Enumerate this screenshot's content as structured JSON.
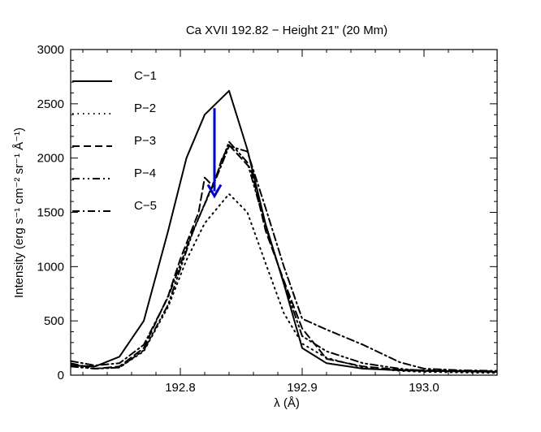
{
  "chart_data": {
    "type": "line",
    "title": "Ca XVII 192.82 − Height 21\" (20 Mm)",
    "xlabel": "λ (Å)",
    "ylabel": "Intensity (erg s⁻¹ cm⁻² sr⁻¹ Å⁻¹)",
    "xlim": [
      192.71,
      193.06
    ],
    "ylim": [
      0,
      3000
    ],
    "x_ticks": [
      192.8,
      192.9,
      193.0
    ],
    "x_tick_labels": [
      "192.8",
      "192.9",
      "193.0"
    ],
    "y_ticks": [
      0,
      500,
      1000,
      1500,
      2000,
      2500,
      3000
    ],
    "y_tick_labels": [
      "0",
      "500",
      "1000",
      "1500",
      "2000",
      "2500",
      "3000"
    ],
    "legend_position": "top-left",
    "series": [
      {
        "name": "C−1",
        "dash": "solid",
        "x": [
          192.71,
          192.73,
          192.75,
          192.77,
          192.79,
          192.805,
          192.82,
          192.84,
          192.855,
          192.87,
          192.885,
          192.9,
          192.92,
          192.95,
          192.98,
          193.0,
          193.03,
          193.06
        ],
        "y": [
          90,
          80,
          170,
          500,
          1330,
          2000,
          2400,
          2620,
          2080,
          1390,
          840,
          250,
          110,
          60,
          45,
          40,
          35,
          30
        ]
      },
      {
        "name": "P−2",
        "dash": "dotted",
        "x": [
          192.71,
          192.73,
          192.75,
          192.77,
          192.79,
          192.805,
          192.82,
          192.84,
          192.855,
          192.87,
          192.885,
          192.9,
          192.92,
          192.95,
          192.98,
          193.0,
          193.03,
          193.06
        ],
        "y": [
          80,
          60,
          70,
          220,
          630,
          1060,
          1400,
          1670,
          1500,
          1030,
          570,
          290,
          160,
          70,
          40,
          30,
          25,
          20
        ]
      },
      {
        "name": "P−3",
        "dash": "dashed",
        "x": [
          192.71,
          192.73,
          192.75,
          192.77,
          192.79,
          192.8,
          192.815,
          192.82,
          192.827,
          192.834,
          192.84,
          192.858,
          192.87,
          192.885,
          192.9,
          192.92,
          192.95,
          192.98,
          193.0,
          193.03,
          193.06
        ],
        "y": [
          110,
          60,
          80,
          250,
          730,
          1070,
          1500,
          1820,
          1740,
          1990,
          2120,
          1900,
          1330,
          870,
          430,
          150,
          80,
          50,
          45,
          40,
          35
        ]
      },
      {
        "name": "P−4",
        "dash": "dashdotdot",
        "x": [
          192.71,
          192.73,
          192.75,
          192.77,
          192.79,
          192.81,
          192.83,
          192.84,
          192.855,
          192.87,
          192.885,
          192.9,
          192.92,
          192.95,
          192.98,
          193.0,
          193.03,
          193.06
        ],
        "y": [
          80,
          60,
          70,
          230,
          650,
          1310,
          1850,
          2150,
          1960,
          1370,
          850,
          360,
          220,
          110,
          60,
          40,
          35,
          30
        ]
      },
      {
        "name": "C−5",
        "dash": "dashdot",
        "x": [
          192.71,
          192.73,
          192.75,
          192.77,
          192.79,
          192.81,
          192.83,
          192.84,
          192.855,
          192.87,
          192.885,
          192.9,
          192.92,
          192.95,
          192.98,
          193.0,
          193.03,
          193.06
        ],
        "y": [
          130,
          90,
          110,
          280,
          720,
          1320,
          1830,
          2110,
          2060,
          1540,
          1000,
          520,
          420,
          280,
          120,
          60,
          45,
          40
        ]
      }
    ],
    "annotation": {
      "type": "arrow",
      "color": "#0000cc",
      "x": 192.828,
      "y_from": 2460,
      "y_to": 1650
    }
  }
}
